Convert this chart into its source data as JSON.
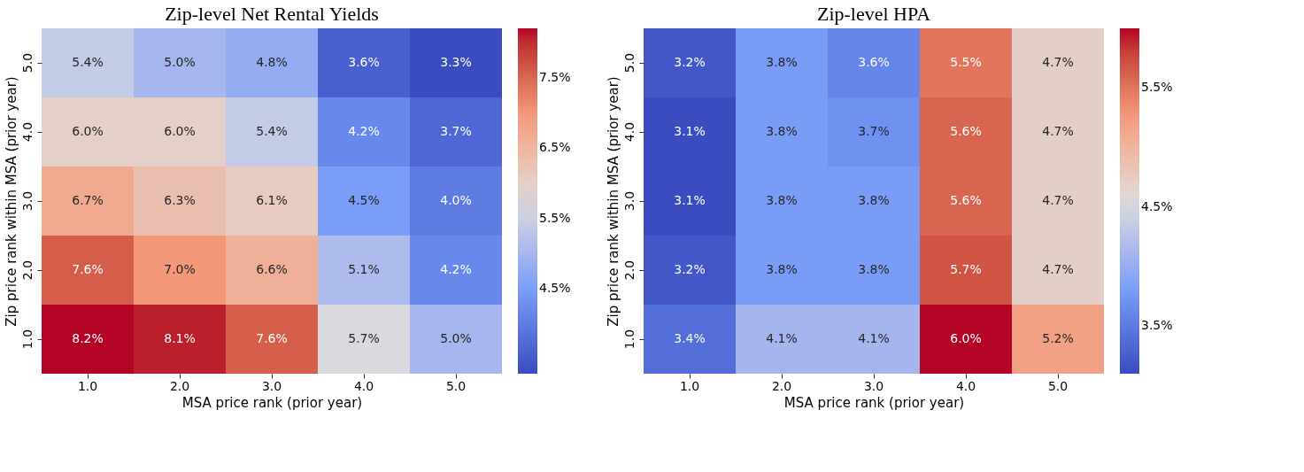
{
  "chart_data": [
    {
      "type": "heatmap",
      "title": "Zip-level Net Rental Yields",
      "xlabel": "MSA price rank (prior year)",
      "ylabel": "Zip price rank within MSA (prior year)",
      "categories": [
        "1.0",
        "2.0",
        "3.0",
        "4.0",
        "5.0"
      ],
      "y_categories": [
        "5.0",
        "4.0",
        "3.0",
        "2.0",
        "1.0"
      ],
      "cells": [
        [
          5.4,
          5.0,
          4.8,
          3.6,
          3.3
        ],
        [
          6.0,
          6.0,
          5.4,
          4.2,
          3.7
        ],
        [
          6.7,
          6.3,
          6.1,
          4.5,
          4.0
        ],
        [
          7.6,
          7.0,
          6.6,
          5.1,
          4.2
        ],
        [
          8.2,
          8.1,
          7.6,
          5.7,
          5.0
        ]
      ],
      "cell_labels": [
        [
          "5.4%",
          "5.0%",
          "4.8%",
          "3.6%",
          "3.3%"
        ],
        [
          "6.0%",
          "6.0%",
          "5.4%",
          "4.2%",
          "3.7%"
        ],
        [
          "6.7%",
          "6.3%",
          "6.1%",
          "4.5%",
          "4.0%"
        ],
        [
          "7.6%",
          "7.0%",
          "6.6%",
          "5.1%",
          "4.2%"
        ],
        [
          "8.2%",
          "8.1%",
          "7.6%",
          "5.7%",
          "5.0%"
        ]
      ],
      "clim": [
        3.3,
        8.2
      ],
      "cticks": [
        {
          "value": 4.5,
          "label": "4.5%"
        },
        {
          "value": 5.5,
          "label": "5.5%"
        },
        {
          "value": 6.5,
          "label": "6.5%"
        },
        {
          "value": 7.5,
          "label": "7.5%"
        }
      ]
    },
    {
      "type": "heatmap",
      "title": "Zip-level HPA",
      "xlabel": "MSA price rank (prior year)",
      "ylabel": "Zip price rank within MSA (prior year)",
      "categories": [
        "1.0",
        "2.0",
        "3.0",
        "4.0",
        "5.0"
      ],
      "y_categories": [
        "5.0",
        "4.0",
        "3.0",
        "2.0",
        "1.0"
      ],
      "cells": [
        [
          3.2,
          3.8,
          3.6,
          5.5,
          4.7
        ],
        [
          3.1,
          3.8,
          3.7,
          5.6,
          4.7
        ],
        [
          3.1,
          3.8,
          3.8,
          5.6,
          4.7
        ],
        [
          3.2,
          3.8,
          3.8,
          5.7,
          4.7
        ],
        [
          3.4,
          4.1,
          4.1,
          6.0,
          5.2
        ]
      ],
      "cell_labels": [
        [
          "3.2%",
          "3.8%",
          "3.6%",
          "5.5%",
          "4.7%"
        ],
        [
          "3.1%",
          "3.8%",
          "3.7%",
          "5.6%",
          "4.7%"
        ],
        [
          "3.1%",
          "3.8%",
          "3.8%",
          "5.6%",
          "4.7%"
        ],
        [
          "3.2%",
          "3.8%",
          "3.8%",
          "5.7%",
          "4.7%"
        ],
        [
          "3.4%",
          "4.1%",
          "4.1%",
          "6.0%",
          "5.2%"
        ]
      ],
      "clim": [
        3.1,
        6.0
      ],
      "cticks": [
        {
          "value": 3.5,
          "label": "3.5%"
        },
        {
          "value": 4.5,
          "label": "4.5%"
        },
        {
          "value": 5.5,
          "label": "5.5%"
        }
      ]
    }
  ]
}
